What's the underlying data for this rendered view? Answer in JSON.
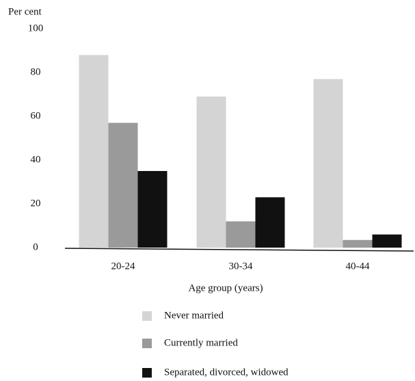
{
  "chart_data": {
    "type": "bar",
    "y_label": "Per cent",
    "x_label": "Age group (years)",
    "categories": [
      "20-24",
      "30-34",
      "40-44"
    ],
    "series": [
      {
        "name": "Never married",
        "color": "#d4d4d4",
        "values": [
          88,
          69,
          77
        ]
      },
      {
        "name": "Currently married",
        "color": "#9a9a9a",
        "values": [
          57,
          12,
          3.5
        ]
      },
      {
        "name": "Separated, divorced, widowed",
        "color": "#111111",
        "values": [
          35,
          23,
          6
        ]
      }
    ],
    "ylim": [
      0,
      100
    ],
    "yticks": [
      0,
      20,
      40,
      60,
      80,
      100
    ],
    "grid": false
  }
}
